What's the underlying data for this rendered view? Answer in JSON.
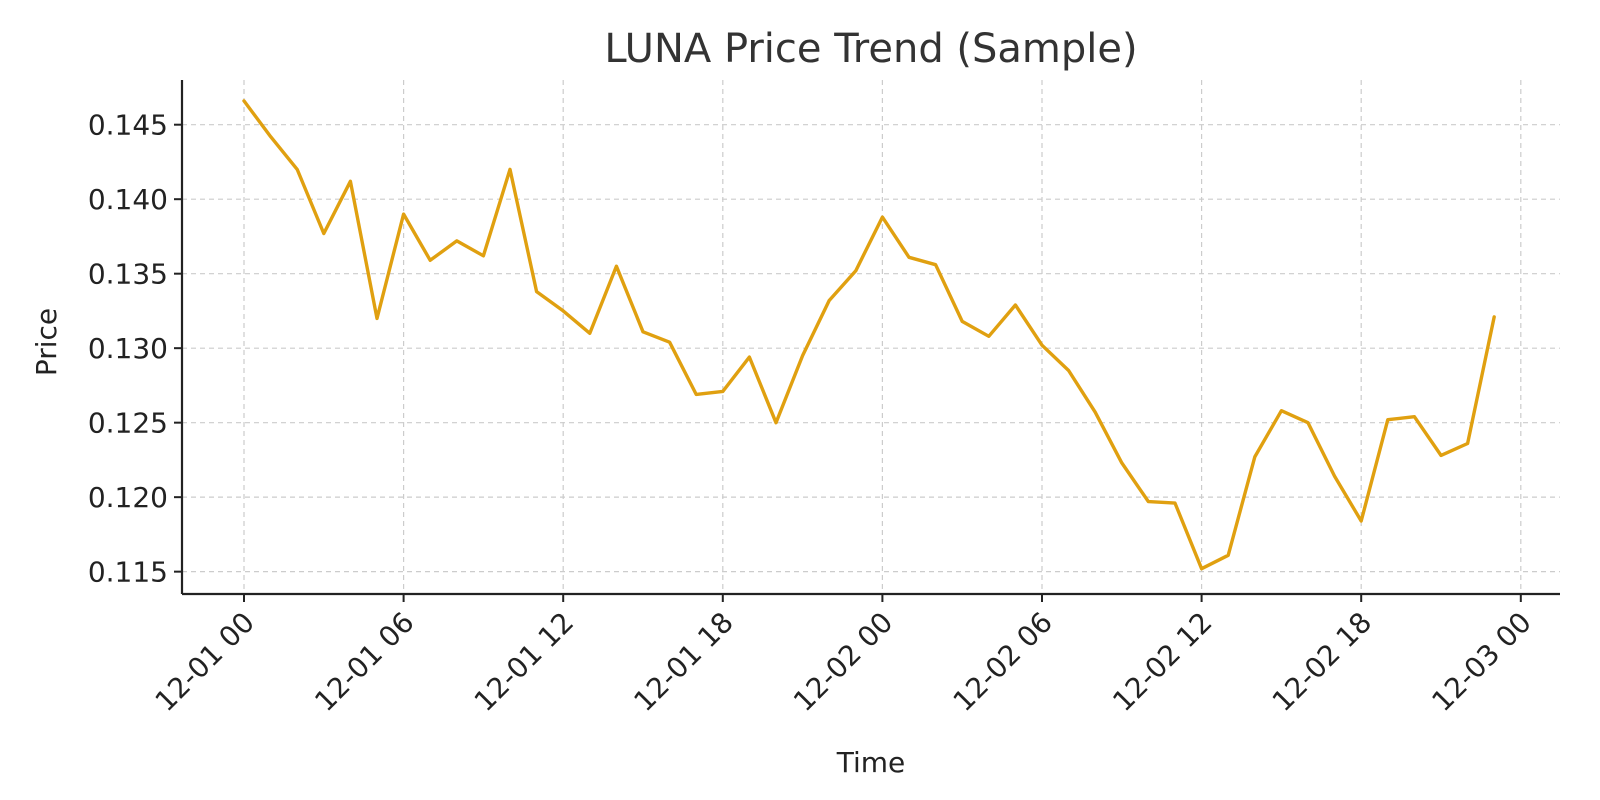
{
  "chart_data": {
    "type": "line",
    "title": "LUNA Price Trend (Sample)",
    "xlabel": "Time",
    "ylabel": "Price",
    "x_ticks": [
      "12-01 00",
      "12-01 06",
      "12-01 12",
      "12-01 18",
      "12-02 00",
      "12-02 06",
      "12-02 12",
      "12-02 18",
      "12-03 00"
    ],
    "y_ticks": [
      "0.115",
      "0.120",
      "0.125",
      "0.130",
      "0.135",
      "0.140",
      "0.145"
    ],
    "x_range": [
      "12-01 00",
      "12-03 00"
    ],
    "ylim": [
      0.1135,
      0.148
    ],
    "grid": true,
    "series": [
      {
        "color": "#E0A010",
        "x": [
          "12-01 00",
          "12-01 01",
          "12-01 02",
          "12-01 03",
          "12-01 04",
          "12-01 05",
          "12-01 06",
          "12-01 07",
          "12-01 08",
          "12-01 09",
          "12-01 10",
          "12-01 11",
          "12-01 12",
          "12-01 13",
          "12-01 14",
          "12-01 15",
          "12-01 16",
          "12-01 17",
          "12-01 18",
          "12-01 19",
          "12-01 20",
          "12-01 21",
          "12-01 22",
          "12-01 23",
          "12-02 00",
          "12-02 01",
          "12-02 02",
          "12-02 03",
          "12-02 04",
          "12-02 05",
          "12-02 06",
          "12-02 07",
          "12-02 08",
          "12-02 09",
          "12-02 10",
          "12-02 11",
          "12-02 12",
          "12-02 13",
          "12-02 14",
          "12-02 15",
          "12-02 16",
          "12-02 17",
          "12-02 18",
          "12-02 19",
          "12-02 20",
          "12-02 21",
          "12-02 22",
          "12-02 23"
        ],
        "values": [
          0.1466,
          0.1442,
          0.142,
          0.1377,
          0.1412,
          0.132,
          0.139,
          0.1359,
          0.1372,
          0.1362,
          0.142,
          0.1338,
          0.1325,
          0.131,
          0.1355,
          0.1311,
          0.1304,
          0.1269,
          0.1271,
          0.1294,
          0.125,
          0.1295,
          0.1332,
          0.1352,
          0.1388,
          0.1361,
          0.1356,
          0.1318,
          0.1308,
          0.1329,
          0.1302,
          0.1285,
          0.1257,
          0.1223,
          0.1197,
          0.1196,
          0.1152,
          0.1161,
          0.1227,
          0.1258,
          0.125,
          0.1214,
          0.1184,
          0.1252,
          0.1254,
          0.1228,
          0.1236,
          0.1321
        ]
      }
    ]
  }
}
